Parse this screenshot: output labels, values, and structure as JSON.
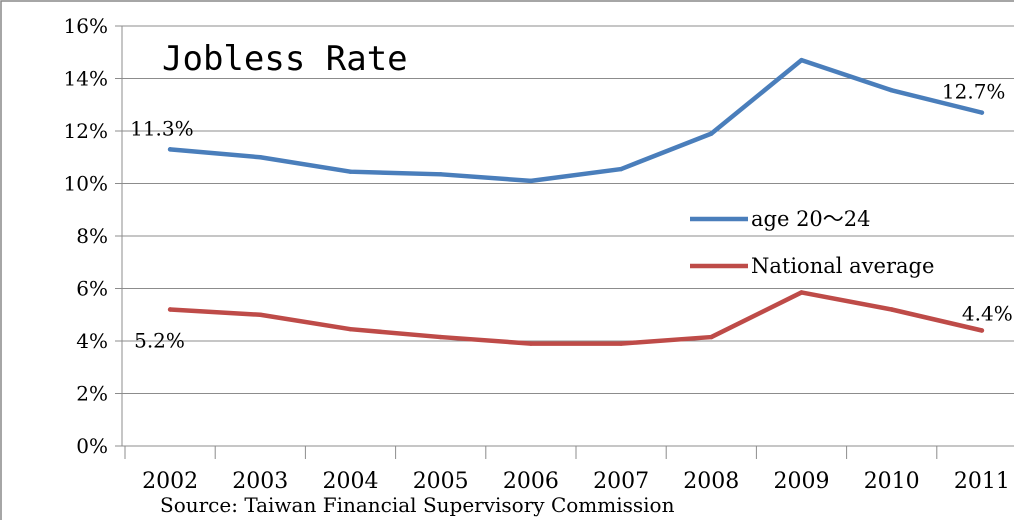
{
  "chart_data": {
    "type": "line",
    "title": "Jobless Rate",
    "source": "Source: Taiwan Financial Supervisory Commission",
    "categories": [
      "2002",
      "2003",
      "2004",
      "2005",
      "2006",
      "2007",
      "2008",
      "2009",
      "2010",
      "2011"
    ],
    "ylim": [
      0,
      16
    ],
    "yticks": [
      "0%",
      "2%",
      "4%",
      "6%",
      "8%",
      "10%",
      "12%",
      "14%",
      "16%"
    ],
    "grid": true,
    "legend_position": "right",
    "series": [
      {
        "name": "age 20～24",
        "color": "#4a7ebb",
        "values": [
          11.3,
          11.0,
          10.45,
          10.35,
          10.1,
          10.55,
          11.9,
          14.7,
          13.55,
          12.7
        ],
        "labels": [
          {
            "index": 0,
            "text": "11.3%"
          },
          {
            "index": 9,
            "text": "12.7%"
          }
        ]
      },
      {
        "name": "National average",
        "color": "#be4b48",
        "values": [
          5.2,
          5.0,
          4.45,
          4.15,
          3.9,
          3.9,
          4.15,
          5.85,
          5.2,
          4.4
        ],
        "labels": [
          {
            "index": 0,
            "text": "5.2%"
          },
          {
            "index": 9,
            "text": "4.4%"
          }
        ]
      }
    ]
  }
}
